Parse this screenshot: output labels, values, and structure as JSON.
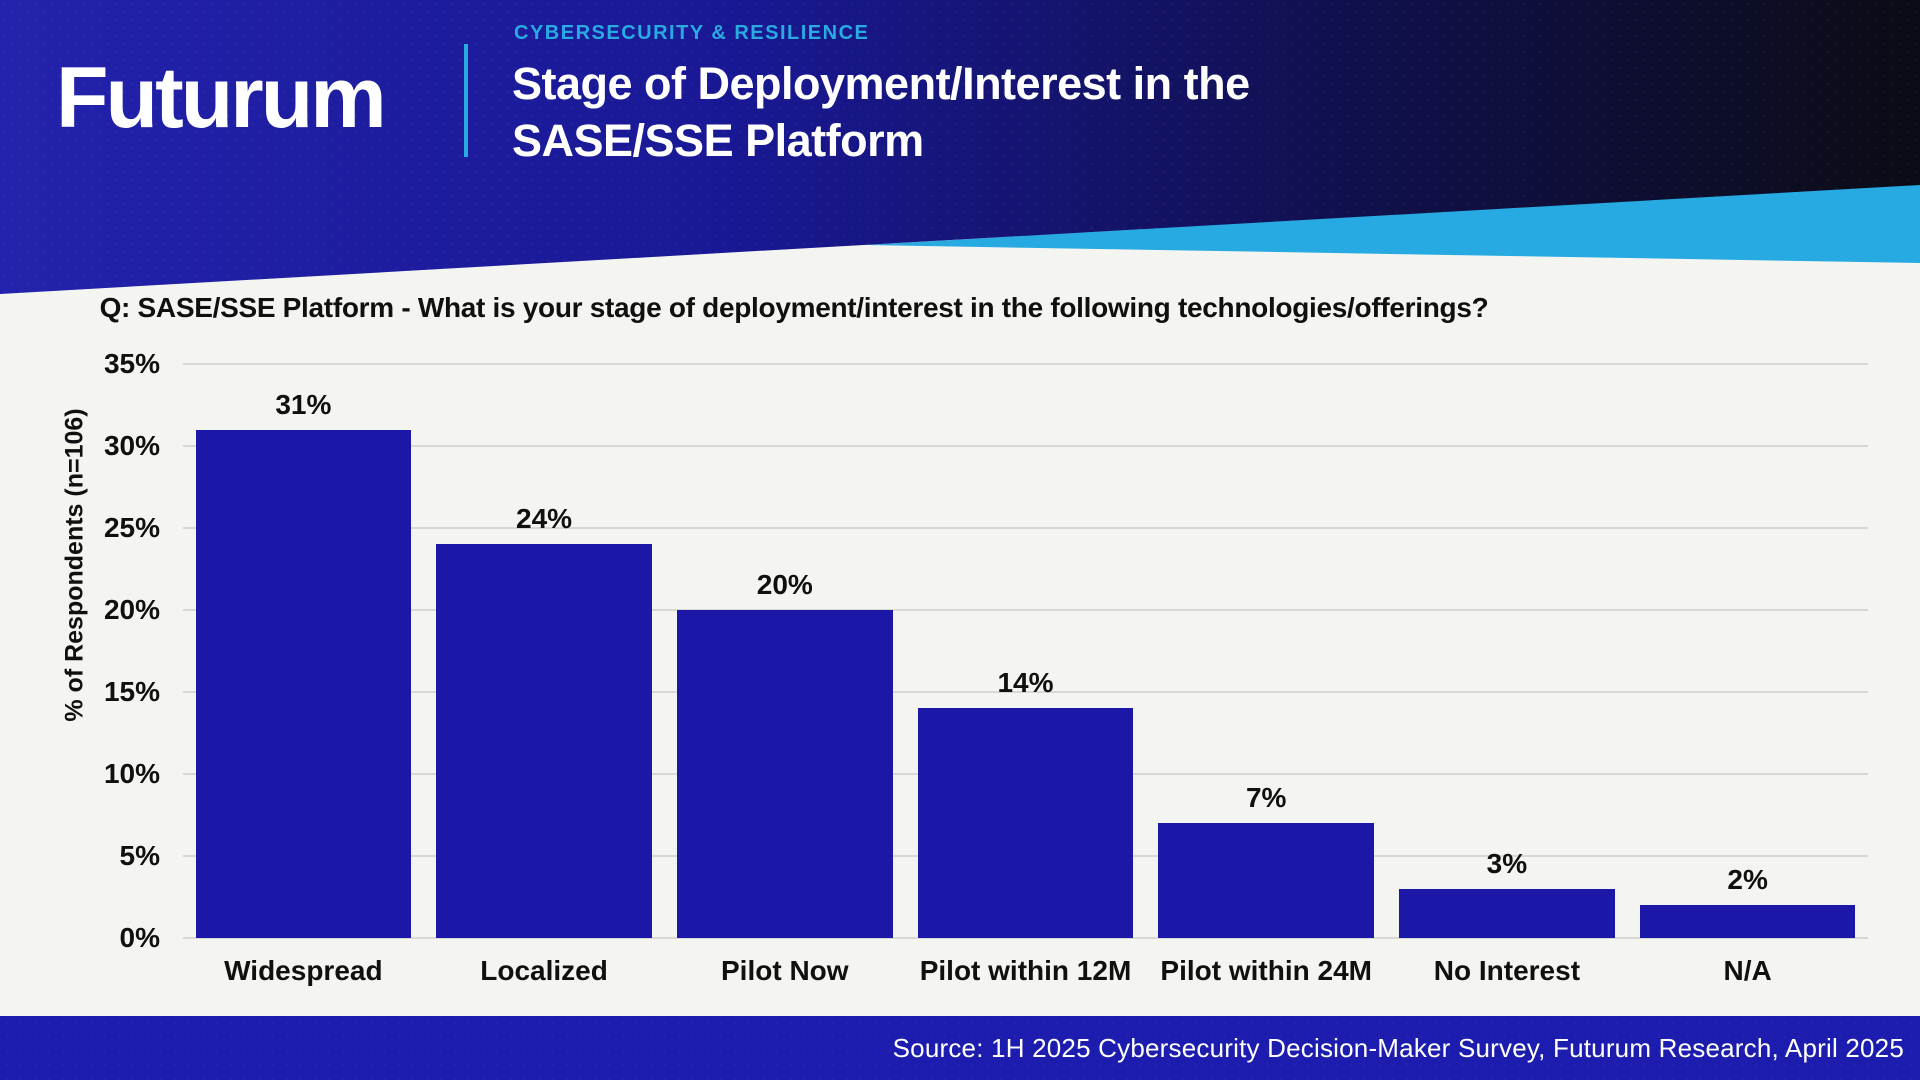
{
  "header": {
    "brand": "Futurum",
    "eyebrow": "CYBERSECURITY & RESILIENCE",
    "title_line1": "Stage of Deployment/Interest in the",
    "title_line2": "SASE/SSE Platform",
    "accent_color": "#29ABE2",
    "gradient_left": "#2222AC",
    "gradient_right": "#0B0C15"
  },
  "chart_data": {
    "type": "bar",
    "title": "Q: SASE/SSE Platform - What is your stage of deployment/interest in the following technologies/offerings?",
    "categories": [
      "Widespread",
      "Localized",
      "Pilot Now",
      "Pilot within 12M",
      "Pilot within 24M",
      "No Interest",
      "N/A"
    ],
    "values": [
      31,
      24,
      20,
      14,
      7,
      3,
      2
    ],
    "value_labels": [
      "31%",
      "24%",
      "20%",
      "14%",
      "7%",
      "3%",
      "2%"
    ],
    "xlabel": "",
    "ylabel": "% of Respondents (n=106)",
    "ylim": [
      0,
      35
    ],
    "ytick_step": 5,
    "ytick_labels": [
      "0%",
      "5%",
      "10%",
      "15%",
      "20%",
      "25%",
      "30%",
      "35%"
    ],
    "grid": true,
    "legend_position": "none",
    "bar_color": "#1B18A8",
    "gridline_color": "#D8D8D5",
    "background_color": "#F4F4F1"
  },
  "footer": {
    "source": "Source: 1H 2025 Cybersecurity Decision-Maker Survey, Futurum Research, April 2025",
    "background_color": "#1C1CAE"
  }
}
